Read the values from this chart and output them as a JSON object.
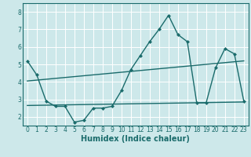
{
  "xlabel": "Humidex (Indice chaleur)",
  "bg_color": "#cde8ea",
  "grid_color": "#ffffff",
  "line_color": "#1a6b6b",
  "xlim": [
    -0.5,
    23.5
  ],
  "ylim": [
    1.5,
    8.5
  ],
  "xticks": [
    0,
    1,
    2,
    3,
    4,
    5,
    6,
    7,
    8,
    9,
    10,
    11,
    12,
    13,
    14,
    15,
    16,
    17,
    18,
    19,
    20,
    21,
    22,
    23
  ],
  "yticks": [
    2,
    3,
    4,
    5,
    6,
    7,
    8
  ],
  "series1_x": [
    0,
    1,
    2,
    3,
    4,
    5,
    6,
    7,
    8,
    9,
    10,
    11,
    12,
    13,
    14,
    15,
    16,
    17,
    18,
    19,
    20,
    21,
    22,
    23
  ],
  "series1_y": [
    5.2,
    4.4,
    2.9,
    2.6,
    2.6,
    1.7,
    1.8,
    2.5,
    2.5,
    2.6,
    3.5,
    4.7,
    5.5,
    6.3,
    7.0,
    7.8,
    6.7,
    6.3,
    2.8,
    2.8,
    4.8,
    5.9,
    5.6,
    2.9
  ],
  "trend1_x": [
    0,
    23
  ],
  "trend1_y": [
    4.05,
    5.2
  ],
  "trend2_x": [
    0,
    23
  ],
  "trend2_y": [
    2.65,
    2.85
  ],
  "marker_size": 2.5,
  "line_width": 1.0,
  "tick_fontsize": 5.5,
  "xlabel_fontsize": 7.0
}
